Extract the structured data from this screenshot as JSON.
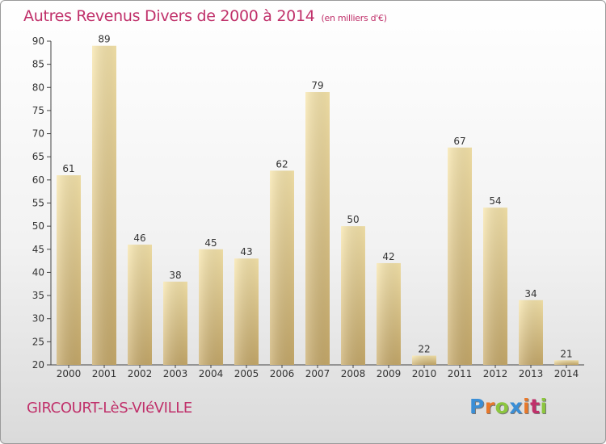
{
  "title": "Autres Revenus Divers de 2000 à 2014",
  "title_unit": "(en milliers d'€)",
  "place": "GIRCOURT-LèS-VIéVILLE",
  "logo": {
    "text": "Proxiti",
    "letter_colors": [
      "#3a8ed6",
      "#e8782a",
      "#8cc63e",
      "#3a8ed6",
      "#e8782a",
      "#c0306a",
      "#8cc63e"
    ]
  },
  "colors": {
    "title": "#c0306a",
    "bar_light": "#f7e2a4",
    "bar_dark": "#c9ac6c"
  },
  "chart_data": {
    "type": "bar",
    "categories": [
      "2000",
      "2001",
      "2002",
      "2003",
      "2004",
      "2005",
      "2006",
      "2007",
      "2008",
      "2009",
      "2010",
      "2011",
      "2012",
      "2013",
      "2014"
    ],
    "values": [
      61,
      89,
      46,
      38,
      45,
      43,
      62,
      79,
      50,
      42,
      22,
      67,
      54,
      34,
      21
    ],
    "title": "Autres Revenus Divers de 2000 à 2014",
    "ylim": [
      20,
      90
    ],
    "yticks": [
      20,
      25,
      30,
      35,
      40,
      45,
      50,
      55,
      60,
      65,
      70,
      75,
      80,
      85,
      90
    ],
    "grid": false,
    "legend": "none"
  }
}
